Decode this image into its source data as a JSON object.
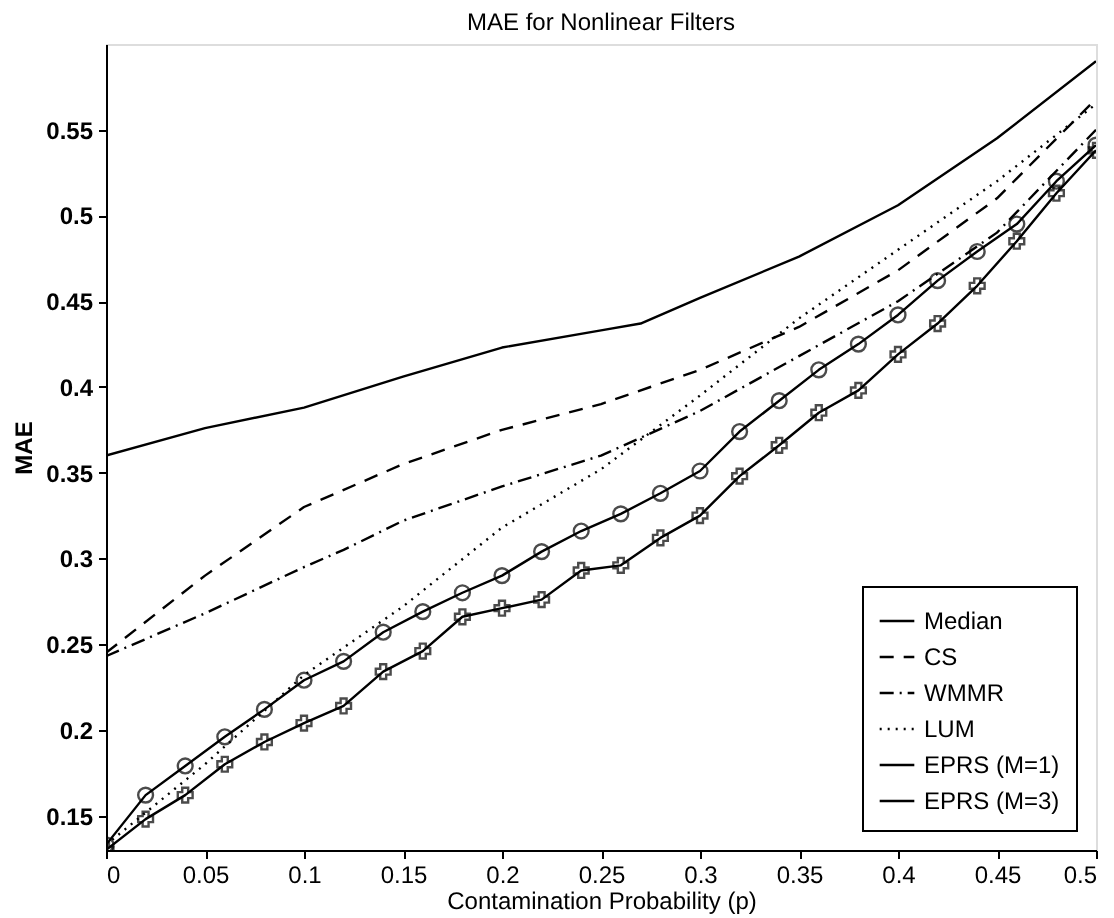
{
  "chart_data": {
    "type": "line",
    "title": "MAE for Nonlinear Filters",
    "xlabel": "Contamination Probability (p)",
    "ylabel": "MAE",
    "xlim": [
      0,
      0.5
    ],
    "ylim": [
      0.13,
      0.6
    ],
    "xticks": [
      0,
      0.05,
      0.1,
      0.15,
      0.2,
      0.25,
      0.3,
      0.35,
      0.4,
      0.45,
      0.5
    ],
    "yticks": [
      0.15,
      0.2,
      0.25,
      0.3,
      0.35,
      0.4,
      0.45,
      0.5,
      0.55
    ],
    "legend": "bottom right",
    "series": [
      {
        "name": "Median",
        "color": "#000000",
        "line_style": "solid",
        "marker": "none",
        "x": [
          0,
          0.05,
          0.1,
          0.15,
          0.2,
          0.25,
          0.27,
          0.3,
          0.35,
          0.4,
          0.45,
          0.5
        ],
        "values": [
          0.36,
          0.376,
          0.388,
          0.406,
          0.423,
          0.433,
          0.437,
          0.452,
          0.476,
          0.506,
          0.545,
          0.59
        ]
      },
      {
        "name": "CS",
        "color": "#000000",
        "line_style": "dashed",
        "marker": "none",
        "x": [
          0,
          0.05,
          0.1,
          0.15,
          0.2,
          0.25,
          0.3,
          0.35,
          0.4,
          0.45,
          0.5
        ],
        "values": [
          0.245,
          0.29,
          0.33,
          0.355,
          0.375,
          0.39,
          0.41,
          0.435,
          0.468,
          0.51,
          0.568
        ]
      },
      {
        "name": "WMMR",
        "color": "#000000",
        "line_style": "dashdot",
        "marker": "none",
        "x": [
          0,
          0.05,
          0.1,
          0.12,
          0.15,
          0.2,
          0.25,
          0.3,
          0.35,
          0.4,
          0.45,
          0.5
        ],
        "values": [
          0.243,
          0.268,
          0.295,
          0.305,
          0.322,
          0.342,
          0.36,
          0.386,
          0.418,
          0.45,
          0.49,
          0.55
        ]
      },
      {
        "name": "LUM",
        "color": "#000000",
        "line_style": "dotted",
        "marker": "none",
        "x": [
          0,
          0.05,
          0.1,
          0.15,
          0.2,
          0.25,
          0.3,
          0.35,
          0.4,
          0.45,
          0.5
        ],
        "values": [
          0.133,
          0.18,
          0.232,
          0.272,
          0.318,
          0.352,
          0.395,
          0.44,
          0.48,
          0.52,
          0.565
        ]
      },
      {
        "name": "EPRS (M=1)",
        "color": "#000000",
        "line_style": "solid",
        "marker": "circle",
        "x": [
          0,
          0.02,
          0.04,
          0.06,
          0.08,
          0.1,
          0.12,
          0.14,
          0.16,
          0.18,
          0.2,
          0.22,
          0.24,
          0.26,
          0.28,
          0.3,
          0.32,
          0.34,
          0.36,
          0.38,
          0.4,
          0.42,
          0.44,
          0.46,
          0.48,
          0.5
        ],
        "values": [
          0.133,
          0.162,
          0.179,
          0.196,
          0.212,
          0.229,
          0.24,
          0.257,
          0.269,
          0.28,
          0.29,
          0.304,
          0.316,
          0.326,
          0.338,
          0.351,
          0.374,
          0.392,
          0.41,
          0.425,
          0.442,
          0.462,
          0.479,
          0.495,
          0.52,
          0.541
        ]
      },
      {
        "name": "EPRS (M=3)",
        "color": "#000000",
        "line_style": "solid",
        "marker": "cross",
        "x": [
          0,
          0.02,
          0.04,
          0.06,
          0.08,
          0.1,
          0.12,
          0.14,
          0.16,
          0.18,
          0.2,
          0.22,
          0.24,
          0.26,
          0.28,
          0.3,
          0.32,
          0.34,
          0.36,
          0.38,
          0.4,
          0.42,
          0.44,
          0.46,
          0.48,
          0.5
        ],
        "values": [
          0.13,
          0.148,
          0.162,
          0.18,
          0.193,
          0.204,
          0.214,
          0.234,
          0.246,
          0.266,
          0.271,
          0.276,
          0.293,
          0.296,
          0.312,
          0.325,
          0.348,
          0.366,
          0.385,
          0.398,
          0.419,
          0.437,
          0.459,
          0.485,
          0.513,
          0.538
        ]
      }
    ]
  }
}
